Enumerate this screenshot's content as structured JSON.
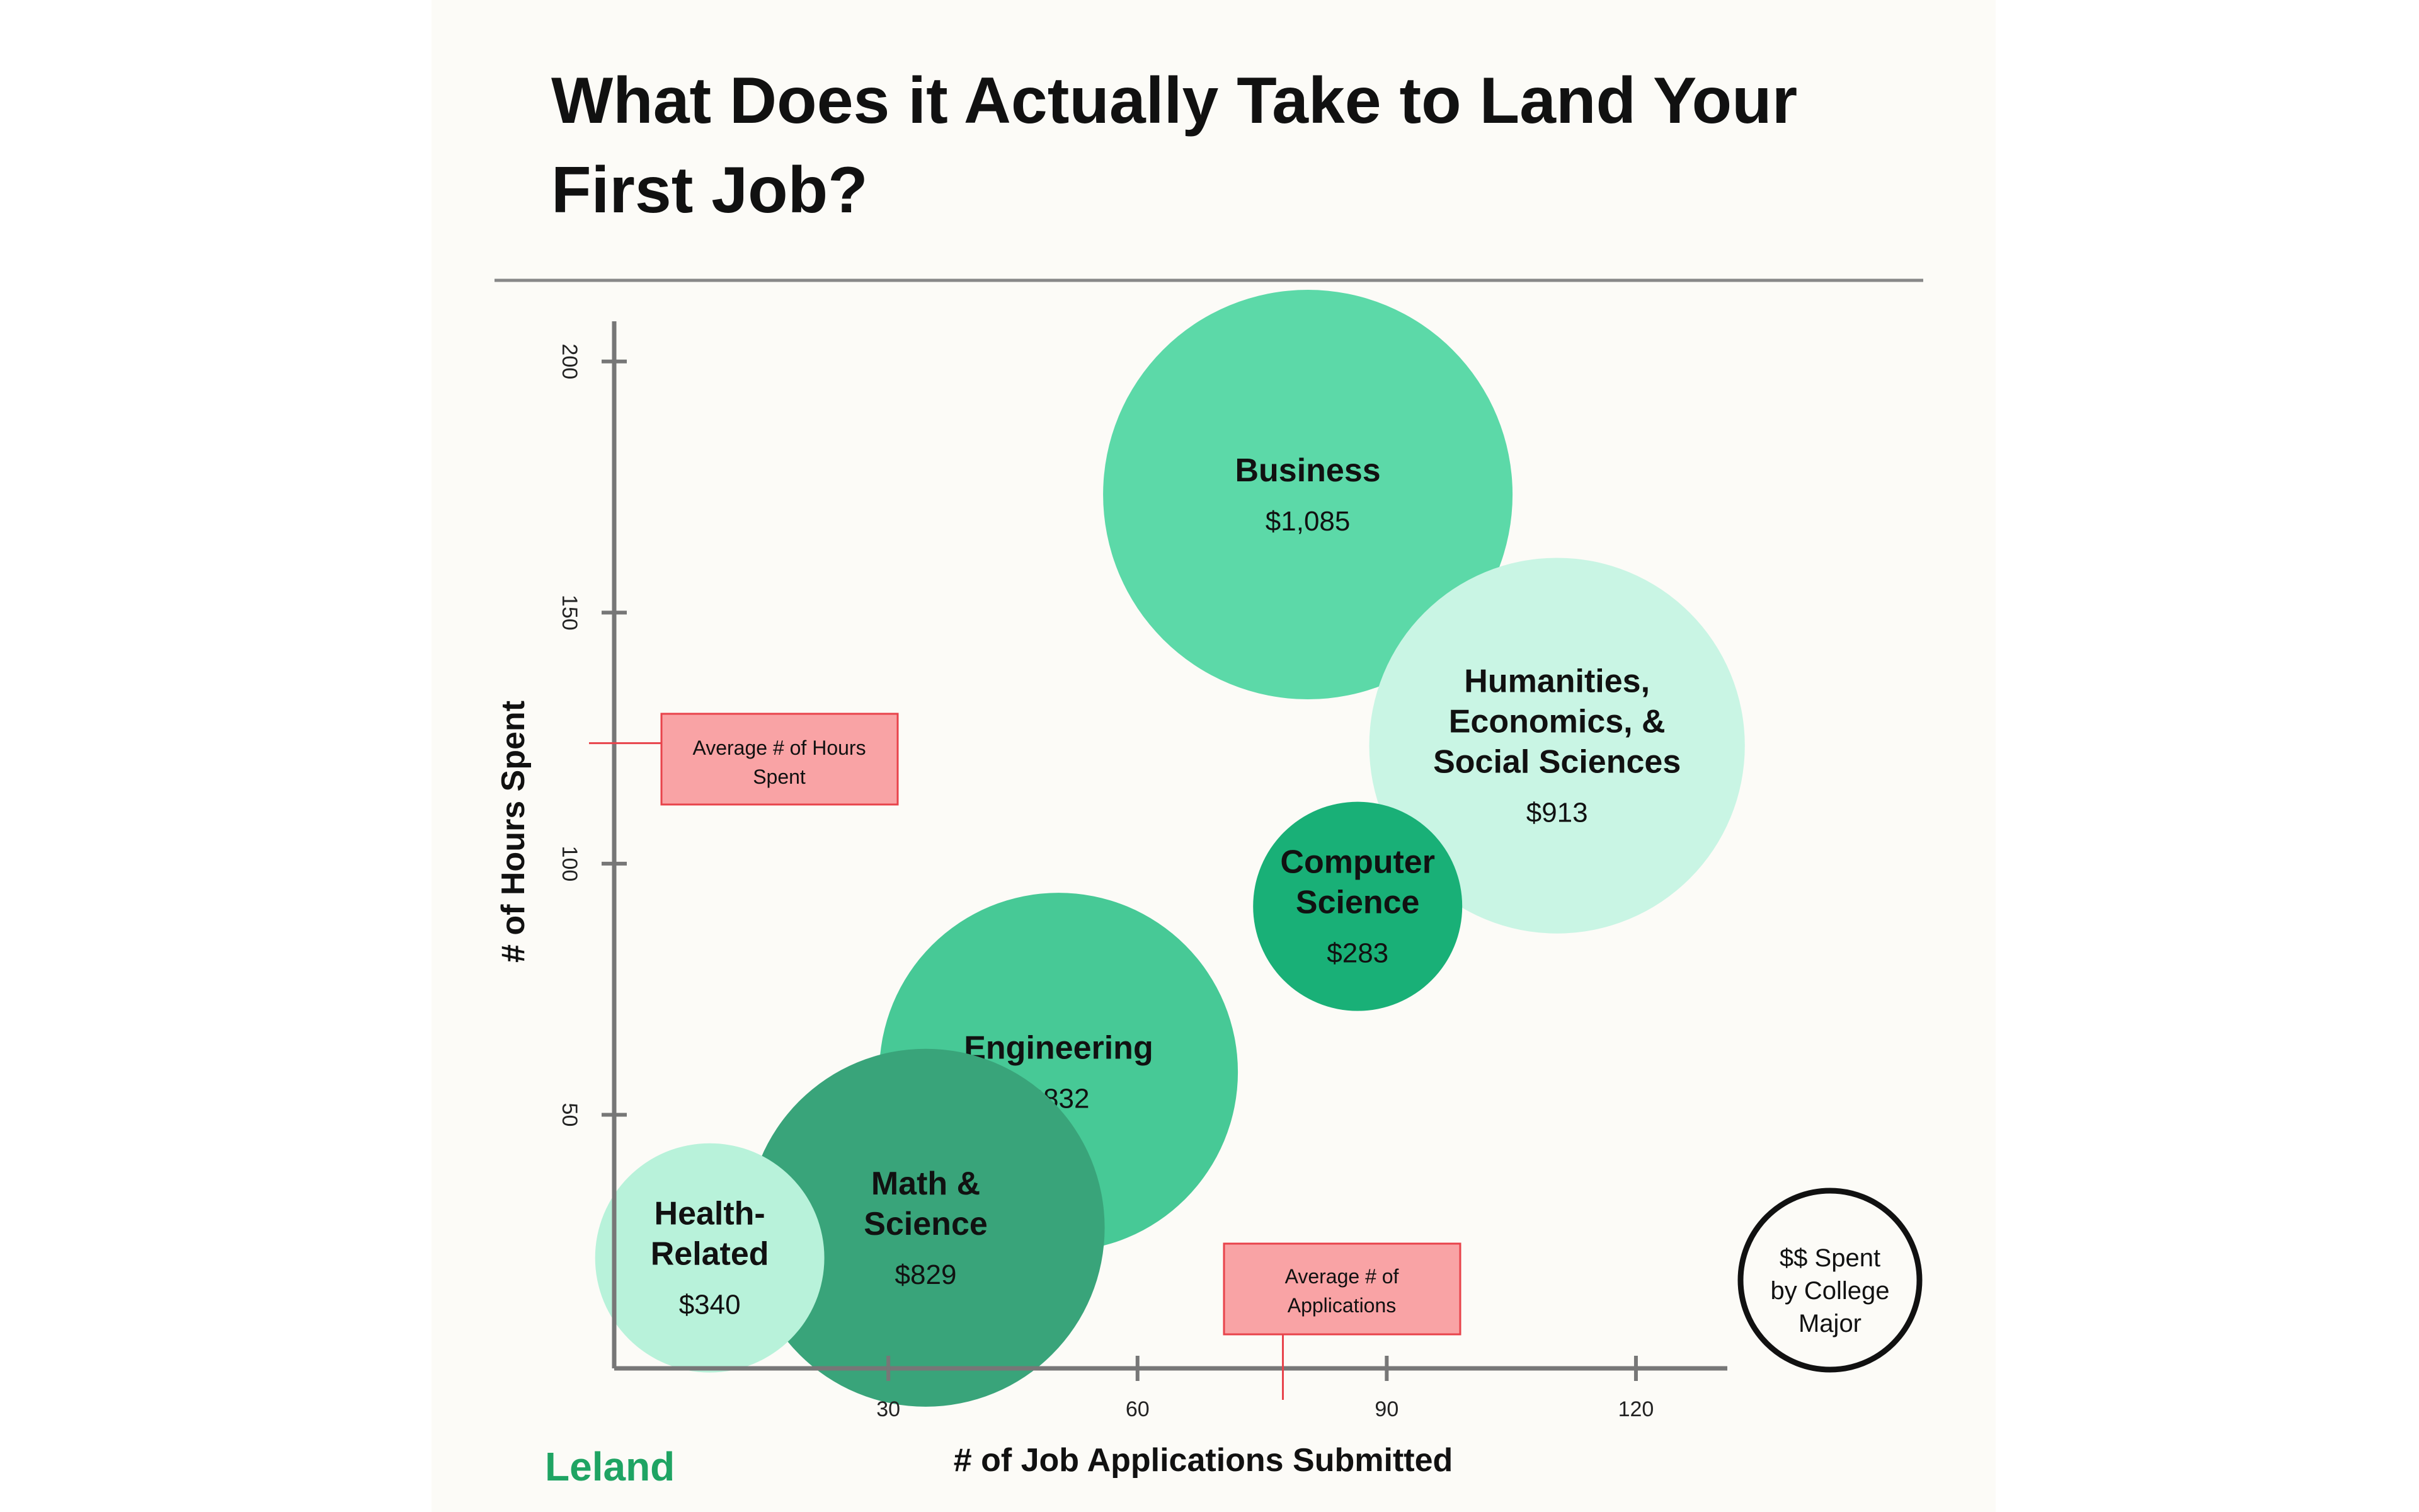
{
  "title_lines": [
    "What Does it Actually Take to Land Your",
    "First Job?"
  ],
  "brand": {
    "name": "Leland",
    "color": "#1fa463",
    "logo_icon": "leland-logo-icon"
  },
  "colors": {
    "background": "#fcfbf7",
    "axis": "#777777",
    "rule": "#888888",
    "callout_fill": "#f9a3a5",
    "callout_stroke": "#e8434b"
  },
  "legend": {
    "lines": [
      "$$ Spent",
      "by College",
      "Major"
    ]
  },
  "chart_data": {
    "type": "bubble",
    "title": "What Does it Actually Take to Land Your First Job?",
    "xlabel": "# of Job Applications Submitted",
    "ylabel": "# of Hours Spent",
    "xlim": [
      -3,
      131
    ],
    "ylim": [
      -0.5,
      208
    ],
    "xticks": [
      30,
      60,
      90,
      120
    ],
    "yticks": [
      50,
      100,
      150,
      200
    ],
    "size_metric": "$$ Spent by College Major",
    "series": [
      {
        "name": "Business",
        "name_lines": [
          "Business"
        ],
        "cost": "$1,085",
        "x": 80.5,
        "y": 173.5,
        "size": 1085,
        "color": "#5cd9a8"
      },
      {
        "name": "Humanities, Economics, & Social Sciences",
        "name_lines": [
          "Humanities,",
          "Economics, &",
          "Social Sciences"
        ],
        "cost": "$913",
        "x": 110.5,
        "y": 123.5,
        "size": 913,
        "color": "#c9f5e4"
      },
      {
        "name": "Computer Science",
        "name_lines": [
          "Computer",
          "Science"
        ],
        "cost": "$283",
        "x": 86.5,
        "y": 91.5,
        "size": 283,
        "color": "#19b077"
      },
      {
        "name": "Engineering",
        "name_lines": [
          "Engineering"
        ],
        "cost": "$832",
        "x": 50.5,
        "y": 58.5,
        "size": 832,
        "color": "#47c996"
      },
      {
        "name": "Math & Science",
        "name_lines": [
          "Math &",
          "Science"
        ],
        "cost": "$829",
        "x": 34.5,
        "y": 27.5,
        "size": 829,
        "color": "#39a47a"
      },
      {
        "name": "Health-Related",
        "name_lines": [
          "Health-",
          "Related"
        ],
        "cost": "$340",
        "x": 8.5,
        "y": 21.5,
        "size": 340,
        "color": "#b8f2da"
      }
    ],
    "averages": {
      "hours": {
        "label_lines": [
          "Average # of Hours",
          "Spent"
        ],
        "value": 124
      },
      "applications": {
        "label_lines": [
          "Average # of",
          "Applications"
        ],
        "value": 77.5
      }
    }
  }
}
